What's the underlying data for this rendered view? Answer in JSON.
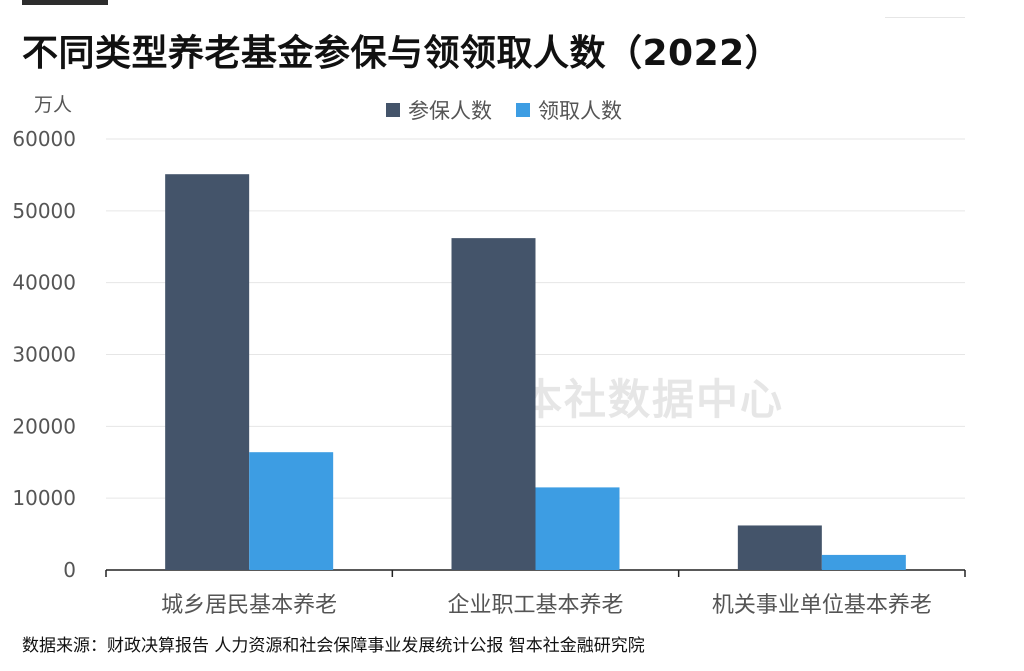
{
  "title": "不同类型养老基金参保与领领取人数（2022）",
  "unit_label": "万人",
  "watermark": "智本社数据中心",
  "source": "数据来源：财政决算报告 人力资源和社会保障事业发展统计公报 智本社金融研究院",
  "colors": {
    "series1": "#44546a",
    "series2": "#3d9de3",
    "grid": "#e6e6e6",
    "axis": "#222222",
    "tick": "#555555"
  },
  "chart_data": {
    "type": "bar",
    "categories": [
      "城乡居民基本养老",
      "企业职工基本养老",
      "机关事业单位基本养老"
    ],
    "series": [
      {
        "name": "参保人数",
        "values": [
          55100,
          46200,
          6200
        ]
      },
      {
        "name": "领取人数",
        "values": [
          16400,
          11500,
          2100
        ]
      }
    ],
    "yticks": [
      "60000",
      "50000",
      "40000",
      "30000",
      "20000",
      "10000",
      "0"
    ],
    "ylim": [
      0,
      60000
    ],
    "grid": true,
    "legend": "top-center"
  }
}
